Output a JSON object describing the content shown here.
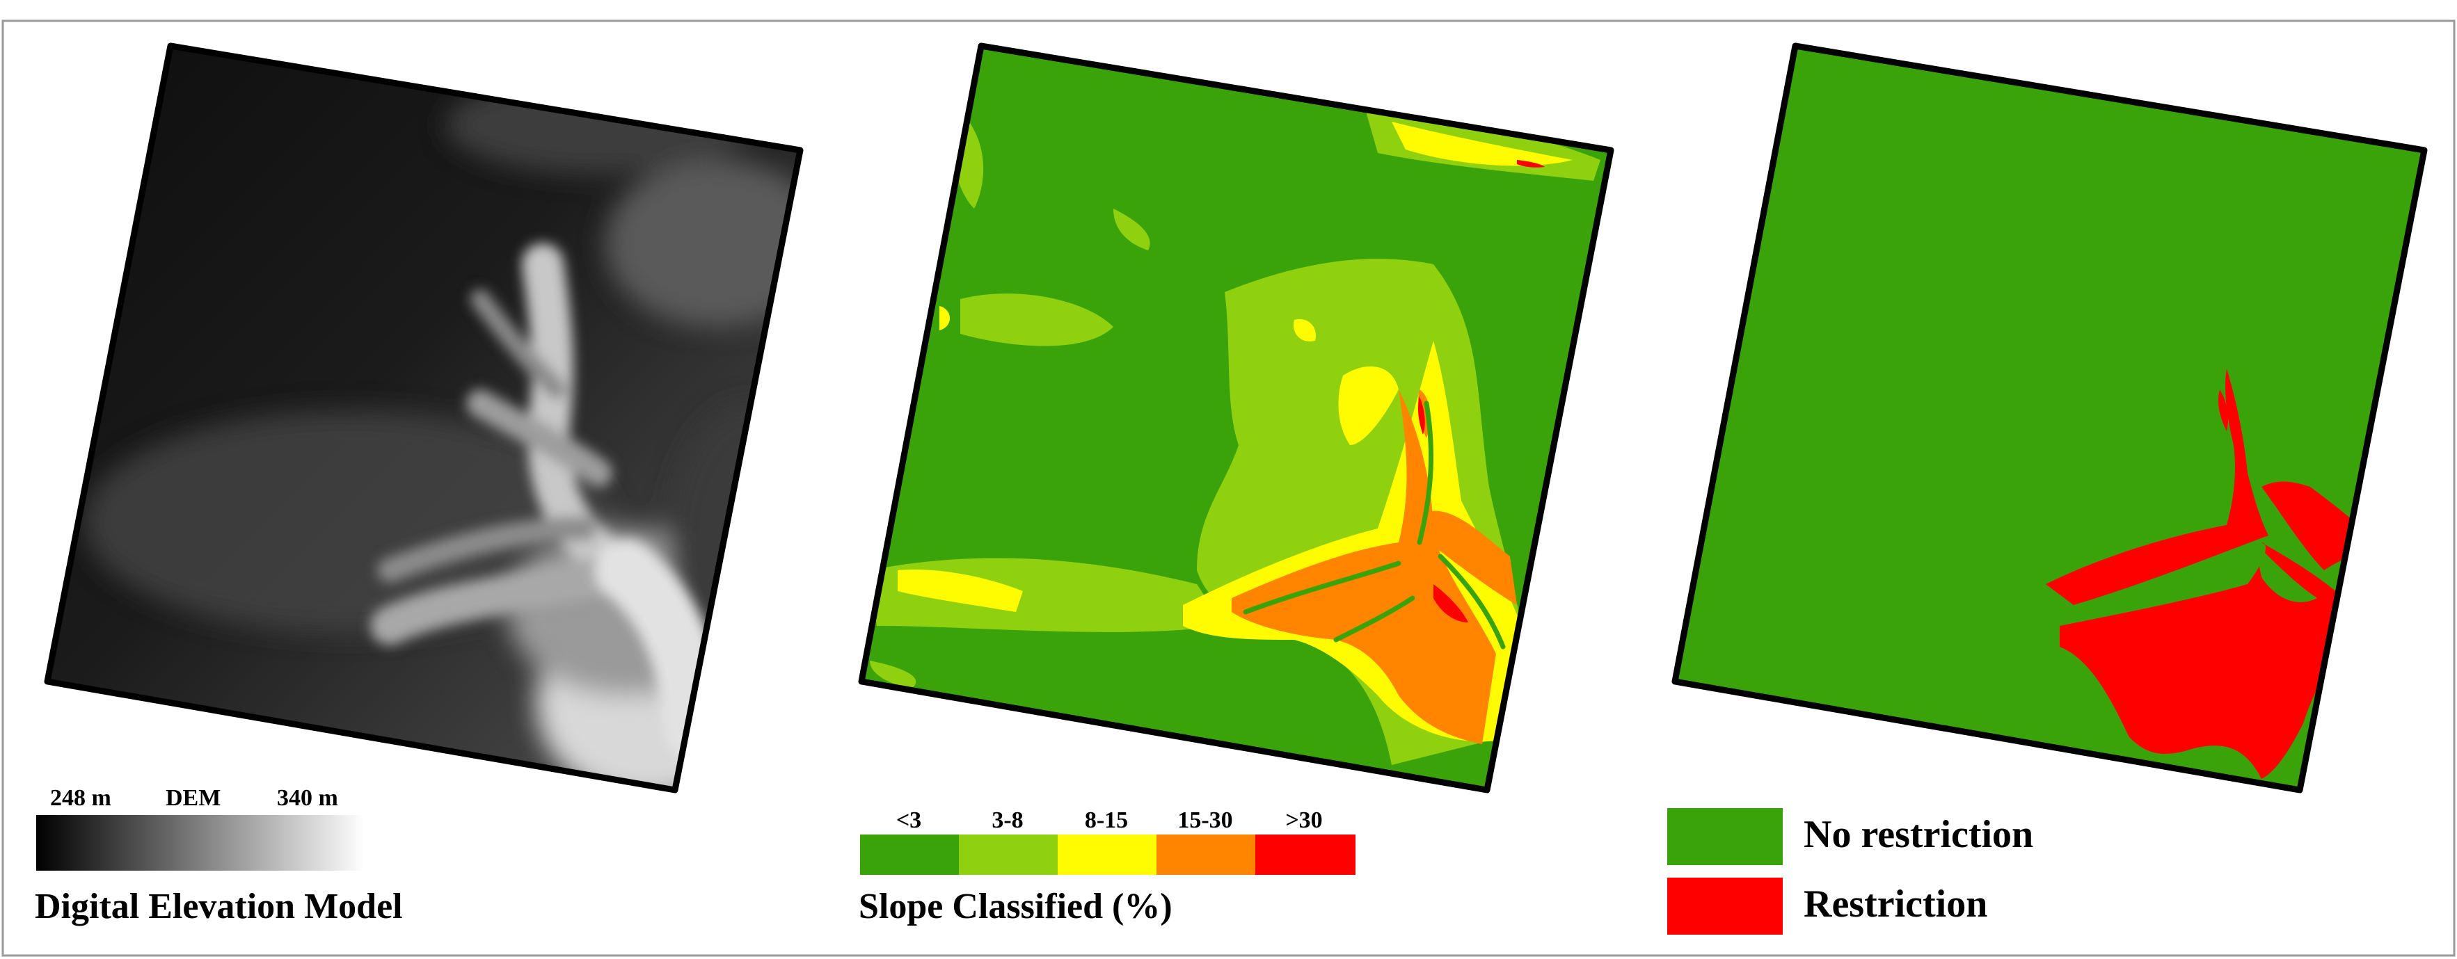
{
  "panels": {
    "dem": {
      "title": "Digital Elevation Model",
      "legend": {
        "min_label": "248 m",
        "mid_label": "DEM",
        "max_label": "340 m"
      }
    },
    "slope": {
      "title": "Slope Classified (%)",
      "legend": [
        {
          "label": "<3",
          "color": "#3aa30a"
        },
        {
          "label": "3-8",
          "color": "#8fd10f"
        },
        {
          "label": "8-15",
          "color": "#fffb00"
        },
        {
          "label": "15-30",
          "color": "#ff8400"
        },
        {
          "label": ">30",
          "color": "#ff0000"
        }
      ]
    },
    "restriction": {
      "legend": [
        {
          "label": "No restriction",
          "color": "#3aa30a"
        },
        {
          "label": "Restriction",
          "color": "#ff0000"
        }
      ]
    }
  }
}
